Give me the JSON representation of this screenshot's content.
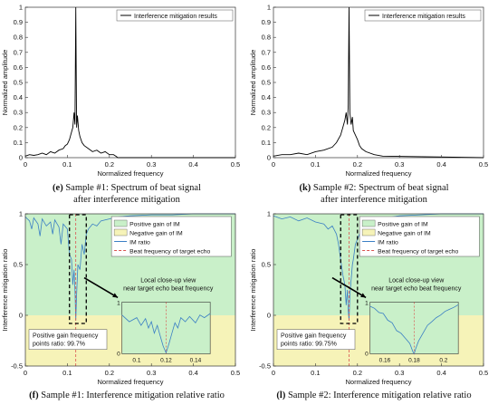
{
  "chart_data": [
    {
      "panel": "e",
      "type": "line",
      "caption_letter": "(e)",
      "caption_line1": "Sample #1: Spectrum of beat signal",
      "caption_line2": "after interference mitigation",
      "xlabel": "Normalized frequency",
      "ylabel": "Normalized amplitude",
      "xlim": [
        0,
        0.5
      ],
      "ylim": [
        0,
        1
      ],
      "xticks": [
        "0",
        "0.1",
        "0.2",
        "0.3",
        "0.4",
        "0.5"
      ],
      "yticks": [
        "0",
        "0.1",
        "0.2",
        "0.3",
        "0.4",
        "0.5",
        "0.6",
        "0.7",
        "0.8",
        "0.9",
        "1"
      ],
      "legend": [
        "Interference mitigation results"
      ],
      "peak_x": 0.12,
      "series": [
        {
          "name": "Interference mitigation results",
          "color": "#000000",
          "x": [
            0,
            0.01,
            0.02,
            0.03,
            0.04,
            0.05,
            0.06,
            0.07,
            0.08,
            0.09,
            0.095,
            0.1,
            0.105,
            0.11,
            0.113,
            0.116,
            0.118,
            0.12,
            0.122,
            0.124,
            0.127,
            0.13,
            0.135,
            0.14,
            0.15,
            0.16,
            0.17,
            0.18,
            0.19,
            0.2,
            0.21,
            0.215,
            0.22,
            0.5
          ],
          "y": [
            0.01,
            0.02,
            0.015,
            0.02,
            0.03,
            0.02,
            0.04,
            0.03,
            0.05,
            0.06,
            0.08,
            0.09,
            0.12,
            0.17,
            0.2,
            0.3,
            0.22,
            1.0,
            0.2,
            0.28,
            0.18,
            0.14,
            0.1,
            0.08,
            0.06,
            0.04,
            0.05,
            0.03,
            0.04,
            0.02,
            0.02,
            0.01,
            0.0,
            0.0
          ]
        }
      ]
    },
    {
      "panel": "k",
      "type": "line",
      "caption_letter": "(k)",
      "caption_line1": "Sample #2: Spectrum of beat signal",
      "caption_line2": "after interference mitigation",
      "xlabel": "Normalized frequency",
      "ylabel": "Normalized amplitude",
      "xlim": [
        0,
        0.5
      ],
      "ylim": [
        0,
        1
      ],
      "xticks": [
        "0",
        "0.1",
        "0.2",
        "0.3",
        "0.4",
        "0.5"
      ],
      "yticks": [
        "0",
        "0.1",
        "0.2",
        "0.3",
        "0.4",
        "0.5",
        "0.6",
        "0.7",
        "0.8",
        "0.9",
        "1"
      ],
      "legend": [
        "Interference mitigation results"
      ],
      "peak_x": 0.18,
      "series": [
        {
          "name": "Interference mitigation results",
          "color": "#000000",
          "x": [
            0,
            0.02,
            0.04,
            0.06,
            0.08,
            0.1,
            0.12,
            0.14,
            0.15,
            0.16,
            0.165,
            0.17,
            0.173,
            0.176,
            0.178,
            0.18,
            0.182,
            0.185,
            0.188,
            0.19,
            0.195,
            0.2,
            0.205,
            0.21,
            0.22,
            0.24,
            0.26,
            0.5
          ],
          "y": [
            0.01,
            0.02,
            0.02,
            0.03,
            0.02,
            0.04,
            0.05,
            0.07,
            0.1,
            0.15,
            0.2,
            0.25,
            0.3,
            0.22,
            0.35,
            1.0,
            0.3,
            0.22,
            0.27,
            0.18,
            0.15,
            0.12,
            0.08,
            0.06,
            0.04,
            0.02,
            0.01,
            0.0
          ]
        }
      ]
    },
    {
      "panel": "f",
      "type": "line",
      "caption_letter": "(f)",
      "caption_line1": "Sample #1: Interference mitigation relative ratio",
      "xlabel": "Normalized frequency",
      "ylabel": "Interference mitigation ratio",
      "xlim": [
        0,
        0.5
      ],
      "ylim": [
        -0.5,
        1
      ],
      "xticks": [
        "0",
        "0.1",
        "0.2",
        "0.3",
        "0.4",
        "0.5"
      ],
      "yticks": [
        "-0.5",
        "0",
        "0.5",
        "1"
      ],
      "legend": [
        "Positive gain of IM",
        "Negative gain of IM",
        "IM ratio",
        "Beat frequency of target echo"
      ],
      "colors": {
        "positive": "#c9f0c9",
        "negative": "#f6f3b8",
        "ratio": "#3b7fc4",
        "beat": "#d9534f"
      },
      "beat_frequency": 0.12,
      "dashed_box_x": [
        0.105,
        0.145
      ],
      "annotation_title": "Local close-up view",
      "annotation_sub": "near target echo beat frequency",
      "box_line1": "Positive gain frequency",
      "box_line2": "points ratio: 99.7%",
      "series": [
        {
          "name": "IM ratio",
          "x": [
            0,
            0.01,
            0.015,
            0.02,
            0.03,
            0.035,
            0.04,
            0.05,
            0.06,
            0.065,
            0.07,
            0.08,
            0.085,
            0.09,
            0.1,
            0.105,
            0.11,
            0.113,
            0.116,
            0.118,
            0.12,
            0.122,
            0.125,
            0.13,
            0.135,
            0.14,
            0.145,
            0.15,
            0.16,
            0.17,
            0.18,
            0.2,
            0.22,
            0.25,
            0.3,
            0.35,
            0.4,
            0.45,
            0.5
          ],
          "y": [
            0.97,
            0.93,
            0.85,
            0.96,
            0.9,
            0.78,
            0.95,
            0.88,
            0.92,
            0.8,
            0.94,
            0.87,
            0.7,
            0.9,
            0.85,
            0.6,
            0.55,
            0.3,
            0.45,
            0.25,
            -0.05,
            0.2,
            0.5,
            0.45,
            0.7,
            0.6,
            0.8,
            0.85,
            0.9,
            0.88,
            0.93,
            0.95,
            0.97,
            0.98,
            0.99,
            0.99,
            1.0,
            1.0,
            1.0
          ]
        }
      ],
      "inset": {
        "xlim": [
          0.09,
          0.15
        ],
        "ylim": [
          0,
          1
        ],
        "xticks": [
          "0.1",
          "0.12",
          "0.14"
        ],
        "x": [
          0.09,
          0.095,
          0.1,
          0.103,
          0.106,
          0.108,
          0.11,
          0.112,
          0.114,
          0.116,
          0.118,
          0.12,
          0.122,
          0.124,
          0.126,
          0.128,
          0.13,
          0.133,
          0.136,
          0.14,
          0.143,
          0.146,
          0.15
        ],
        "y": [
          0.75,
          0.62,
          0.7,
          0.55,
          0.68,
          0.5,
          0.62,
          0.4,
          0.55,
          0.35,
          0.15,
          0.02,
          0.2,
          0.4,
          0.6,
          0.5,
          0.7,
          0.62,
          0.72,
          0.6,
          0.75,
          0.7,
          0.78
        ]
      }
    },
    {
      "panel": "l",
      "type": "line",
      "caption_letter": "(l)",
      "caption_line1": "Sample #2: Interference mitigation relative ratio",
      "xlabel": "Normalized frequency",
      "ylabel": "Interference mitigation ratio",
      "xlim": [
        0,
        0.5
      ],
      "ylim": [
        -0.5,
        1
      ],
      "xticks": [
        "0",
        "0.1",
        "0.2",
        "0.3",
        "0.4",
        "0.5"
      ],
      "yticks": [
        "-0.5",
        "0",
        "0.5",
        "1"
      ],
      "legend": [
        "Positive gain of IM",
        "Negative gain of IM",
        "IM ratio",
        "Beat frequency of target echo"
      ],
      "colors": {
        "positive": "#c9f0c9",
        "negative": "#f6f3b8",
        "ratio": "#3b7fc4",
        "beat": "#d9534f"
      },
      "beat_frequency": 0.18,
      "dashed_box_x": [
        0.16,
        0.2
      ],
      "annotation_title": "Local close-up view",
      "annotation_sub": "near target echo beat frequency",
      "box_line1": "Positive gain frequency",
      "box_line2": "points ratio: 99.75%",
      "series": [
        {
          "name": "IM ratio",
          "x": [
            0,
            0.02,
            0.04,
            0.06,
            0.08,
            0.1,
            0.12,
            0.13,
            0.14,
            0.15,
            0.155,
            0.16,
            0.165,
            0.17,
            0.173,
            0.176,
            0.178,
            0.18,
            0.182,
            0.185,
            0.188,
            0.19,
            0.195,
            0.2,
            0.21,
            0.22,
            0.25,
            0.3,
            0.35,
            0.4,
            0.45,
            0.5
          ],
          "y": [
            0.98,
            0.95,
            0.97,
            0.93,
            0.96,
            0.92,
            0.9,
            0.85,
            0.88,
            0.8,
            0.7,
            0.55,
            0.4,
            0.3,
            0.1,
            0.25,
            0.05,
            -0.05,
            0.2,
            0.35,
            0.5,
            0.55,
            0.7,
            0.75,
            0.85,
            0.9,
            0.95,
            0.98,
            0.99,
            1.0,
            1.0,
            1.0
          ]
        }
      ],
      "inset": {
        "xlim": [
          0.15,
          0.21
        ],
        "ylim": [
          0,
          1
        ],
        "xticks": [
          "0.16",
          "0.18",
          "0.2"
        ],
        "x": [
          0.15,
          0.153,
          0.156,
          0.159,
          0.162,
          0.165,
          0.168,
          0.171,
          0.174,
          0.177,
          0.179,
          0.18,
          0.181,
          0.183,
          0.186,
          0.189,
          0.192,
          0.195,
          0.198,
          0.201,
          0.204,
          0.207,
          0.21
        ],
        "y": [
          0.92,
          0.88,
          0.8,
          0.78,
          0.65,
          0.6,
          0.45,
          0.4,
          0.3,
          0.2,
          0.05,
          0.0,
          0.1,
          0.25,
          0.4,
          0.55,
          0.62,
          0.7,
          0.75,
          0.82,
          0.86,
          0.9,
          0.95
        ]
      }
    }
  ]
}
